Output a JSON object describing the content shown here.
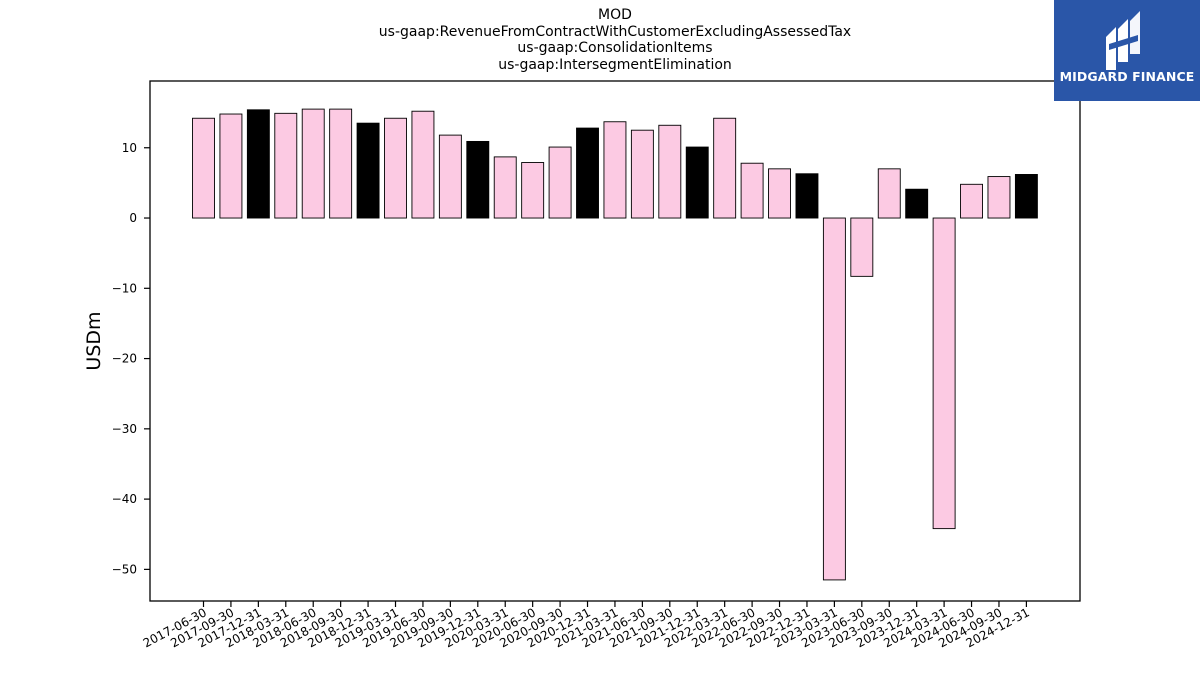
{
  "title_lines": [
    "MOD",
    "us-gaap:RevenueFromContractWithCustomerExcludingAssessedTax",
    "us-gaap:ConsolidationItems",
    "us-gaap:IntersegmentElimination"
  ],
  "logo": {
    "text": "MIDGARD FINANCE",
    "color": "#2a56a8"
  },
  "chart_data": {
    "type": "bar",
    "ylabel": "USDm",
    "xlabel": "",
    "ylim": [
      -54.5,
      19.5
    ],
    "yticks": [
      10,
      0,
      -10,
      -20,
      -30,
      -40,
      -50
    ],
    "colors": {
      "default": "#fccae3",
      "q4": "#000000",
      "edge": "#000000"
    },
    "categories": [
      "2017-06-30",
      "2017-09-30",
      "2017-12-31",
      "2018-03-31",
      "2018-06-30",
      "2018-09-30",
      "2018-12-31",
      "2019-03-31",
      "2019-06-30",
      "2019-09-30",
      "2019-12-31",
      "2020-03-31",
      "2020-06-30",
      "2020-09-30",
      "2020-12-31",
      "2021-03-31",
      "2021-06-30",
      "2021-09-30",
      "2021-12-31",
      "2022-03-31",
      "2022-06-30",
      "2022-09-30",
      "2022-12-31",
      "2023-03-31",
      "2023-06-30",
      "2023-09-30",
      "2023-12-31",
      "2024-03-31",
      "2024-06-30",
      "2024-09-30",
      "2024-12-31"
    ],
    "values": [
      14.2,
      14.8,
      15.4,
      14.9,
      15.5,
      15.5,
      13.5,
      14.2,
      15.2,
      11.8,
      10.9,
      8.7,
      7.9,
      10.1,
      12.8,
      13.7,
      12.5,
      13.2,
      10.1,
      14.2,
      7.8,
      7.0,
      6.3,
      -51.5,
      -8.3,
      7.0,
      4.1,
      -44.2,
      4.8,
      5.9,
      6.2
    ],
    "grid": false
  }
}
